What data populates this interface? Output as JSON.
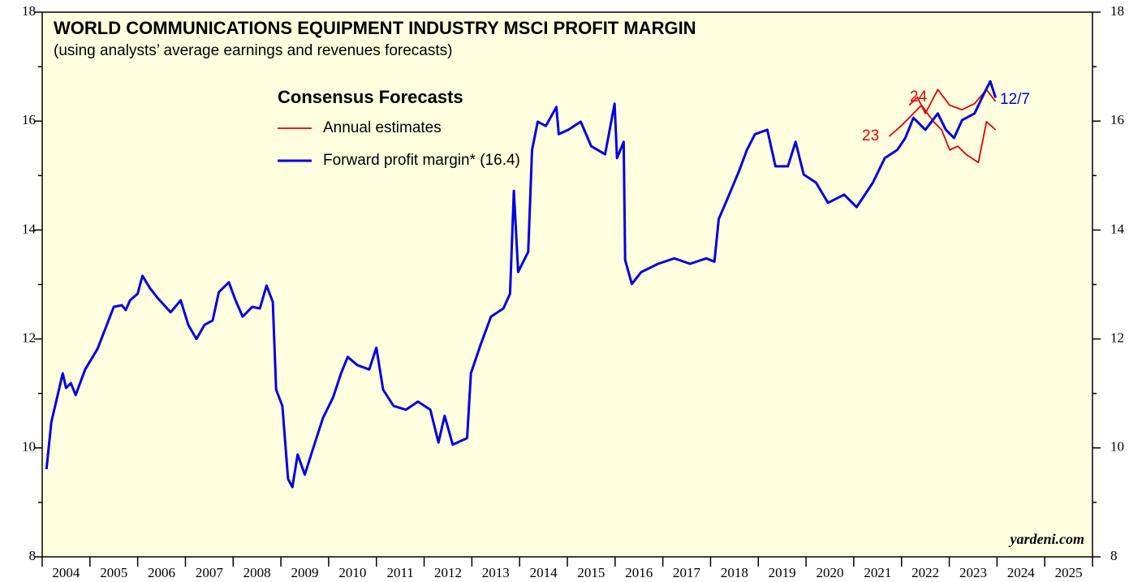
{
  "chart_data": {
    "type": "line",
    "title": "WORLD COMMUNICATIONS EQUIPMENT INDUSTRY MSCI PROFIT MARGIN",
    "subtitle": "(using analysts’ average earnings and revenues forecasts)",
    "legend_title": "Consensus Forecasts",
    "annotations": [
      "23",
      "24",
      "12/7"
    ],
    "source": "yardeni.com",
    "xlim": [
      2004,
      2026
    ],
    "xticks": [
      {
        "value": 2004.5,
        "label": "2004"
      },
      {
        "value": 2005.5,
        "label": "2005"
      },
      {
        "value": 2006.5,
        "label": "2006"
      },
      {
        "value": 2007.5,
        "label": "2007"
      },
      {
        "value": 2008.5,
        "label": "2008"
      },
      {
        "value": 2009.5,
        "label": "2009"
      },
      {
        "value": 2010.5,
        "label": "2010"
      },
      {
        "value": 2011.5,
        "label": "2011"
      },
      {
        "value": 2012.5,
        "label": "2012"
      },
      {
        "value": 2013.5,
        "label": "2013"
      },
      {
        "value": 2014.5,
        "label": "2014"
      },
      {
        "value": 2015.5,
        "label": "2015"
      },
      {
        "value": 2016.5,
        "label": "2016"
      },
      {
        "value": 2017.5,
        "label": "2017"
      },
      {
        "value": 2018.5,
        "label": "2018"
      },
      {
        "value": 2019.5,
        "label": "2019"
      },
      {
        "value": 2020.5,
        "label": "2020"
      },
      {
        "value": 2021.5,
        "label": "2021"
      },
      {
        "value": 2022.5,
        "label": "2022"
      },
      {
        "value": 2023.5,
        "label": "2023"
      },
      {
        "value": 2024.5,
        "label": "2024"
      },
      {
        "value": 2025.5,
        "label": "2025"
      }
    ],
    "ylim": [
      8,
      18
    ],
    "yticks": [
      8,
      10,
      12,
      14,
      16,
      18
    ],
    "yminorticks": [
      9,
      11,
      13,
      15,
      17
    ],
    "series": [
      {
        "name": "Annual estimates",
        "color": "#e00000",
        "x": [
          2021.74,
          2021.99,
          2022.25,
          2022.42,
          2022.67,
          2022.84,
          2023.01,
          2023.18,
          2023.35,
          2023.61,
          2023.78,
          2023.97
        ],
        "values": [
          15.72,
          15.91,
          16.14,
          16.29,
          15.99,
          15.84,
          15.47,
          15.54,
          15.39,
          15.24,
          15.99,
          15.84
        ]
      },
      {
        "name": "Annual estimates",
        "color": "#e00000",
        "legend": false,
        "x": [
          2022.16,
          2022.33,
          2022.5,
          2022.76,
          2023.01,
          2023.27,
          2023.53,
          2023.78,
          2023.97
        ],
        "values": [
          16.29,
          16.44,
          16.14,
          16.58,
          16.29,
          16.21,
          16.32,
          16.58,
          16.36
        ]
      },
      {
        "name": "Forward profit margin* (16.4)",
        "color": "#0000e6",
        "x": [
          2004.09,
          2004.19,
          2004.43,
          2004.5,
          2004.6,
          2004.7,
          2004.9,
          2005.16,
          2005.5,
          2005.67,
          2005.75,
          2005.84,
          2006.0,
          2006.1,
          2006.26,
          2006.43,
          2006.69,
          2006.9,
          2007.06,
          2007.23,
          2007.4,
          2007.57,
          2007.7,
          2007.91,
          2008.05,
          2008.2,
          2008.4,
          2008.56,
          2008.7,
          2008.83,
          2008.9,
          2009.03,
          2009.15,
          2009.24,
          2009.35,
          2009.5,
          2009.66,
          2009.88,
          2010.09,
          2010.26,
          2010.4,
          2010.6,
          2010.85,
          2011.0,
          2011.14,
          2011.36,
          2011.62,
          2011.87,
          2012.13,
          2012.3,
          2012.43,
          2012.6,
          2012.9,
          2012.98,
          2013.18,
          2013.4,
          2013.66,
          2013.8,
          2013.88,
          2013.97,
          2014.18,
          2014.26,
          2014.38,
          2014.55,
          2014.77,
          2014.82,
          2015.02,
          2015.28,
          2015.5,
          2015.79,
          2015.99,
          2016.04,
          2016.18,
          2016.21,
          2016.35,
          2016.55,
          2016.9,
          2017.24,
          2017.57,
          2017.91,
          2018.08,
          2018.17,
          2018.39,
          2018.6,
          2018.76,
          2018.93,
          2019.19,
          2019.36,
          2019.62,
          2019.78,
          2019.95,
          2020.21,
          2020.46,
          2020.8,
          2021.06,
          2021.4,
          2021.65,
          2021.91,
          2022.08,
          2022.25,
          2022.5,
          2022.76,
          2022.93,
          2023.1,
          2023.27,
          2023.53,
          2023.73,
          2023.86,
          2023.97
        ],
        "values": [
          9.61,
          10.47,
          11.37,
          11.1,
          11.19,
          10.97,
          11.44,
          11.82,
          12.59,
          12.62,
          12.53,
          12.71,
          12.83,
          13.16,
          12.93,
          12.74,
          12.49,
          12.71,
          12.26,
          12.0,
          12.26,
          12.34,
          12.86,
          13.04,
          12.71,
          12.41,
          12.59,
          12.56,
          12.98,
          12.68,
          11.07,
          10.77,
          9.43,
          9.28,
          9.88,
          9.51,
          9.95,
          10.55,
          10.92,
          11.37,
          11.67,
          11.52,
          11.44,
          11.84,
          11.07,
          10.77,
          10.7,
          10.85,
          10.7,
          10.1,
          10.59,
          10.06,
          10.18,
          11.37,
          11.89,
          12.41,
          12.56,
          12.83,
          14.72,
          13.23,
          13.6,
          15.47,
          15.99,
          15.91,
          16.26,
          15.76,
          15.84,
          15.99,
          15.54,
          15.39,
          16.32,
          15.32,
          15.62,
          13.45,
          13.01,
          13.23,
          13.38,
          13.48,
          13.38,
          13.48,
          13.42,
          14.2,
          14.65,
          15.09,
          15.47,
          15.76,
          15.84,
          15.17,
          15.17,
          15.62,
          15.02,
          14.87,
          14.5,
          14.65,
          14.42,
          14.87,
          15.32,
          15.47,
          15.69,
          16.06,
          15.84,
          16.14,
          15.84,
          15.69,
          16.02,
          16.14,
          16.51,
          16.73,
          16.43
        ]
      }
    ]
  }
}
